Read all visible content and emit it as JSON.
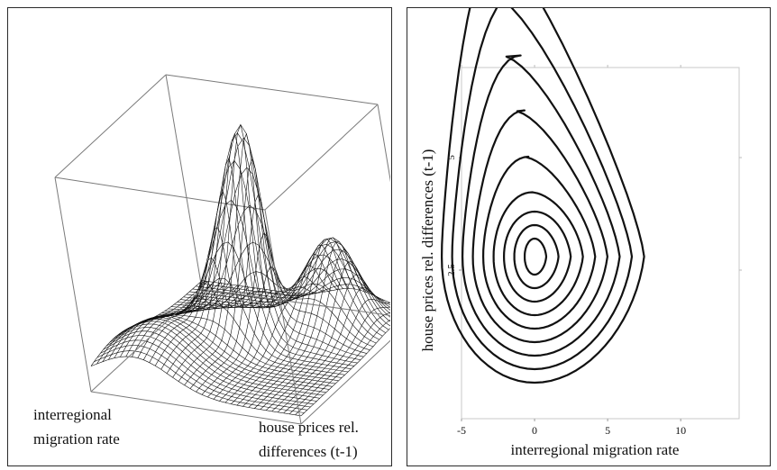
{
  "chart_data": [
    {
      "type": "surface",
      "axes": {
        "x_label": "interregional migration rate",
        "y_label": "house prices rel. differences (t-1)"
      },
      "labels": {
        "x_line1": "interregional",
        "x_line2": "migration rate",
        "y_line1": "house prices rel.",
        "y_line2": "differences (t-1)"
      },
      "density_peaks": [
        {
          "x": 0.0,
          "y": 3.0,
          "height": 1.0
        },
        {
          "x": -1.5,
          "y": 6.5,
          "height": 0.45
        }
      ]
    },
    {
      "type": "contour",
      "title": "",
      "xlabel": "interregional migration rate",
      "ylabel": "house prices rel. differences (t-1)",
      "xlim": [
        -5,
        14
      ],
      "ylim": [
        -0.8,
        7
      ],
      "x_ticks": [
        -5,
        0,
        5,
        10
      ],
      "x_tick_labels": [
        "-5",
        "0",
        "5",
        "10"
      ],
      "y_ticks": [
        5,
        2.5
      ],
      "y_tick_labels": [
        "5",
        "2.5"
      ],
      "levels": 9
    }
  ]
}
